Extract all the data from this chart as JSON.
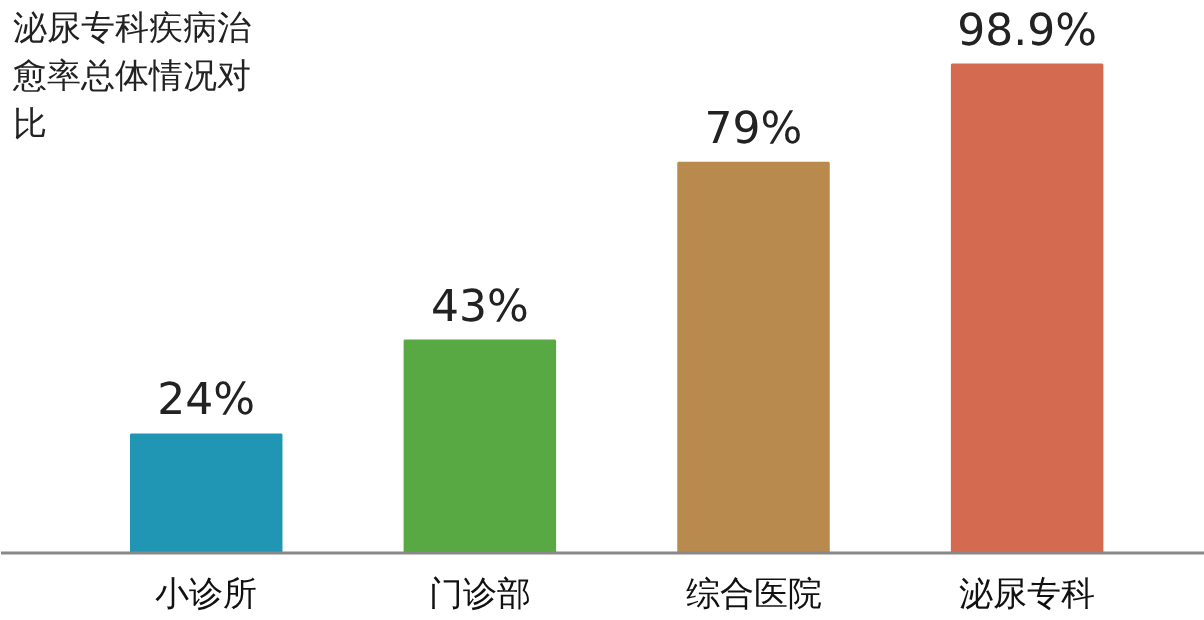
{
  "chart_data": {
    "type": "bar",
    "title": "泌尿专科疾病治愈率总体情况对比",
    "categories": [
      "小诊所",
      "门诊部",
      "综合医院",
      "泌尿专科"
    ],
    "values": [
      24,
      43,
      79,
      98.9
    ],
    "colors": [
      "#2196b4",
      "#58a844",
      "#b98a4e",
      "#d46a50"
    ],
    "value_labels": [
      "24%",
      "43%",
      "79%",
      "98.9%"
    ],
    "grid": false
  }
}
